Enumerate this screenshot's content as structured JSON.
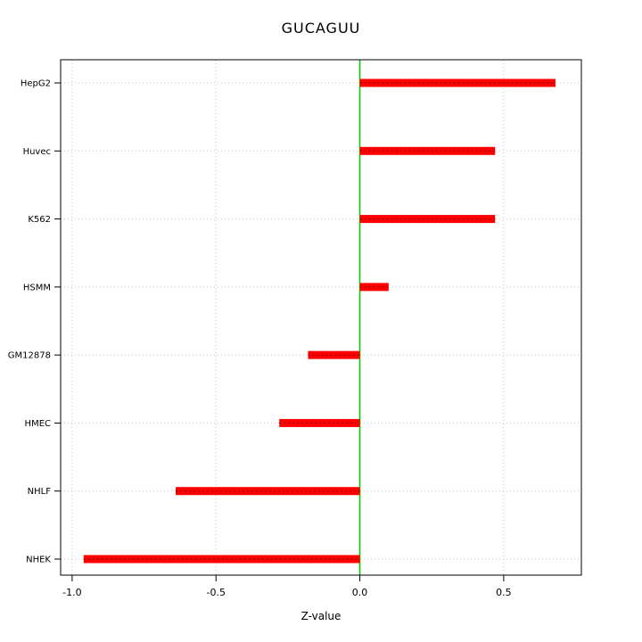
{
  "chart_data": {
    "type": "bar",
    "orientation": "horizontal",
    "title": "GUCAGUU",
    "xlabel": "Z-value",
    "categories": [
      "HepG2",
      "Huvec",
      "K562",
      "HSMM",
      "GM12878",
      "HMEC",
      "NHLF",
      "NHEK"
    ],
    "values": [
      0.68,
      0.47,
      0.47,
      0.1,
      -0.18,
      -0.28,
      -0.64,
      -0.96
    ],
    "xticks": [
      -1.0,
      -0.5,
      0.0,
      0.5
    ],
    "xtick_labels": [
      "-1.0",
      "-0.5",
      "0.0",
      "0.5"
    ],
    "xlim": [
      -1.04,
      0.77
    ],
    "grid": true,
    "legend": "none",
    "bar_color": "#FF0000",
    "bar_texture_color": "#AA0000",
    "zero_line_color": "#00CC00",
    "grid_color": "#C8C8C8",
    "border_color": "#000000"
  }
}
